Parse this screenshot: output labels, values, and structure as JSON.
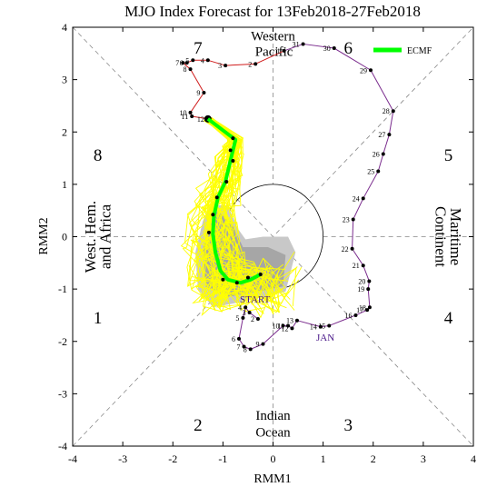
{
  "chart_data": {
    "type": "line",
    "title": "MJO Index Forecast for 13Feb2018-27Feb2018",
    "xlabel": "RMM1",
    "ylabel": "RMM2",
    "xlim": [
      -4,
      4
    ],
    "ylim": [
      -4,
      4
    ],
    "xticks": [
      "-4",
      "-3",
      "-2",
      "-1",
      "0",
      "1",
      "2",
      "3",
      "4"
    ],
    "yticks": [
      "-4",
      "-3",
      "-2",
      "-1",
      "0",
      "1",
      "2",
      "3",
      "4"
    ],
    "phases": [
      "1",
      "2",
      "3",
      "4",
      "5",
      "6",
      "7",
      "8"
    ],
    "regions": {
      "top": [
        "Western",
        "Pacific"
      ],
      "bottom": [
        "Indian",
        "Ocean"
      ],
      "left": [
        "West. Hem.",
        "and Africa"
      ],
      "right": [
        "Maritime",
        "Continent"
      ]
    },
    "annotations": {
      "start": "START",
      "month": "JAN"
    },
    "legend": {
      "label": "ECMF",
      "position": "top-right"
    },
    "colors": {
      "ensemble": "#ffff00",
      "ensemble_spread_dark": "#a6a6a6",
      "ensemble_spread_light": "#c8c8c8",
      "forecast_mean": "#00ff00",
      "observed_jan": "#7b2d8e",
      "observed_dec": "#d01c1c",
      "grid_guides": "#888888"
    },
    "observed": [
      {
        "day": "2",
        "x": -0.3,
        "y": -1.57
      },
      {
        "day": "3",
        "x": -0.47,
        "y": -1.45
      },
      {
        "day": "4",
        "x": -0.55,
        "y": -1.35
      },
      {
        "day": "5",
        "x": -0.6,
        "y": -1.55
      },
      {
        "day": "6",
        "x": -0.68,
        "y": -1.95
      },
      {
        "day": "7",
        "x": -0.58,
        "y": -2.1
      },
      {
        "day": "8",
        "x": -0.45,
        "y": -2.15
      },
      {
        "day": "9",
        "x": -0.2,
        "y": -2.05
      },
      {
        "day": "10",
        "x": 0.2,
        "y": -1.7
      },
      {
        "day": "11",
        "x": 0.3,
        "y": -1.7
      },
      {
        "day": "12",
        "x": 0.38,
        "y": -1.75
      },
      {
        "day": "13",
        "x": 0.48,
        "y": -1.6
      },
      {
        "day": "14",
        "x": 0.95,
        "y": -1.72
      },
      {
        "day": "15",
        "x": 1.12,
        "y": -1.7
      },
      {
        "day": "16",
        "x": 1.65,
        "y": -1.5
      },
      {
        "day": "17",
        "x": 1.88,
        "y": -1.4
      },
      {
        "day": "18",
        "x": 1.93,
        "y": -1.35
      },
      {
        "day": "19",
        "x": 1.9,
        "y": -1.0
      },
      {
        "day": "20",
        "x": 1.92,
        "y": -0.85
      },
      {
        "day": "21",
        "x": 1.8,
        "y": -0.55
      },
      {
        "day": "22",
        "x": 1.58,
        "y": -0.23
      },
      {
        "day": "23",
        "x": 1.6,
        "y": 0.33
      },
      {
        "day": "24",
        "x": 1.8,
        "y": 0.73
      },
      {
        "day": "25",
        "x": 2.1,
        "y": 1.25
      },
      {
        "day": "26",
        "x": 2.2,
        "y": 1.58
      },
      {
        "day": "27",
        "x": 2.32,
        "y": 1.95
      },
      {
        "day": "28",
        "x": 2.4,
        "y": 2.4
      },
      {
        "day": "29",
        "x": 1.95,
        "y": 3.18
      },
      {
        "day": "30",
        "x": 1.22,
        "y": 3.6
      },
      {
        "day": "31",
        "x": 0.6,
        "y": 3.68
      },
      {
        "day": "1",
        "x": 0.22,
        "y": 3.55
      },
      {
        "day": "2",
        "x": -0.35,
        "y": 3.3
      },
      {
        "day": "3",
        "x": -0.95,
        "y": 3.27
      },
      {
        "day": "4",
        "x": -1.3,
        "y": 3.37
      },
      {
        "day": "5",
        "x": -1.6,
        "y": 3.37
      },
      {
        "day": "6",
        "x": -1.72,
        "y": 3.32
      },
      {
        "day": "7",
        "x": -1.8,
        "y": 3.32
      },
      {
        "day": "8",
        "x": -1.65,
        "y": 3.2
      },
      {
        "day": "9",
        "x": -1.38,
        "y": 2.75
      },
      {
        "day": "10",
        "x": -1.65,
        "y": 2.37
      },
      {
        "day": "11",
        "x": -1.62,
        "y": 2.3
      },
      {
        "day": "12",
        "x": -1.3,
        "y": 2.25
      }
    ],
    "observed_split_index": 30,
    "forecast_mean": [
      {
        "x": -1.3,
        "y": 2.25
      },
      {
        "x": -0.75,
        "y": 1.85
      },
      {
        "x": -0.8,
        "y": 1.65
      },
      {
        "x": -0.85,
        "y": 1.45
      },
      {
        "x": -0.95,
        "y": 1.05
      },
      {
        "x": -1.1,
        "y": 0.75
      },
      {
        "x": -1.18,
        "y": 0.4
      },
      {
        "x": -1.2,
        "y": 0.05
      },
      {
        "x": -1.15,
        "y": -0.3
      },
      {
        "x": -1.05,
        "y": -0.65
      },
      {
        "x": -0.9,
        "y": -0.82
      },
      {
        "x": -0.65,
        "y": -0.88
      },
      {
        "x": -0.45,
        "y": -0.82
      },
      {
        "x": -0.25,
        "y": -0.72
      }
    ],
    "forecast_dots": [
      {
        "x": -0.8,
        "y": 1.88
      },
      {
        "x": -0.85,
        "y": 1.65
      },
      {
        "x": -0.8,
        "y": 1.45
      },
      {
        "x": -0.93,
        "y": 1.05
      },
      {
        "x": -1.12,
        "y": 0.75
      },
      {
        "x": -1.2,
        "y": 0.42
      },
      {
        "x": -1.28,
        "y": 0.08
      },
      {
        "x": -1.0,
        "y": -0.82
      },
      {
        "x": -0.72,
        "y": -0.88
      },
      {
        "x": -0.5,
        "y": -0.78
      },
      {
        "x": -0.25,
        "y": -0.72
      }
    ]
  }
}
